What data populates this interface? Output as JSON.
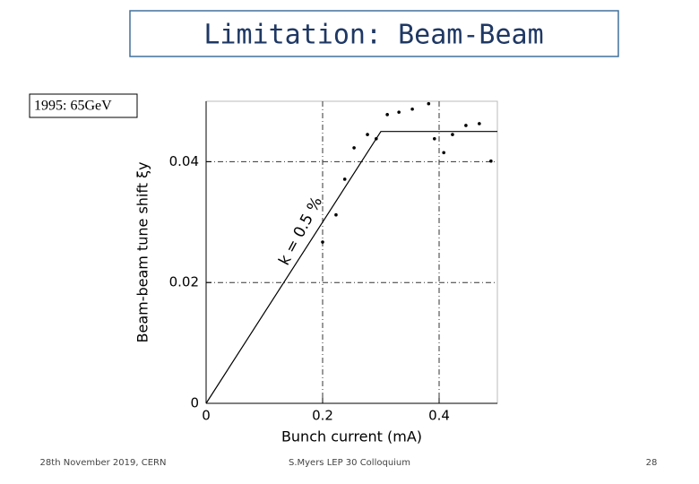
{
  "slide": {
    "title": "Limitation: Beam-Beam",
    "label": "1995: 65GeV",
    "footer_left": "28th November 2019,  CERN",
    "footer_center": "S.Myers LEP 30 Colloquium",
    "page_number": "28"
  },
  "chart_data": {
    "type": "scatter",
    "x_label": "Bunch current (mA)",
    "y_label": "Beam-beam tune shift ξy",
    "annotation": "k = 0.5 %",
    "x": [
      0.2,
      0.223,
      0.238,
      0.254,
      0.277,
      0.292,
      0.311,
      0.331,
      0.354,
      0.382,
      0.392,
      0.408,
      0.423,
      0.446,
      0.469,
      0.489
    ],
    "values": [
      0.0267,
      0.0312,
      0.0371,
      0.0423,
      0.0445,
      0.0438,
      0.0478,
      0.0482,
      0.0487,
      0.0496,
      0.0438,
      0.0415,
      0.0445,
      0.046,
      0.0463,
      0.0401
    ],
    "color": "#000000",
    "fit": {
      "x": [
        0,
        0.3,
        0.5
      ],
      "values": [
        0,
        0.045,
        0.045
      ]
    },
    "xlim": [
      0,
      0.5
    ],
    "ylim": [
      0,
      0.05
    ],
    "xticks": [
      0,
      0.2,
      0.4
    ],
    "yticks": [
      0,
      0.02,
      0.04
    ],
    "grid": true
  }
}
